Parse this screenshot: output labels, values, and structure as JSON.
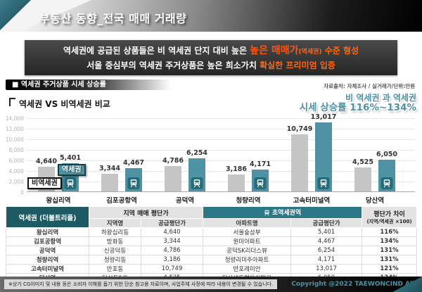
{
  "header": {
    "title": "부동산 동향_전국 매매 거래량"
  },
  "banner": {
    "line1_plain": "역세권에 공급된 상품들은 비 역세권 단지 대비 높은",
    "line1_em": "높은 매매가",
    "line1_em_paren": "(역세권)",
    "line1_em2": "수준 형성",
    "line2_plain": "서울 중심부의 역세권 주거상품은 높은 희소가치",
    "line2_em": "확실한 프리미엄 입증"
  },
  "section": {
    "title": "■ 역세권 주거상품 시세 상승률",
    "source": "자료출처: 자체조사 / 실거래가/단위:만원"
  },
  "compare": {
    "title": "역세권 VS 비역세권 비교",
    "highlight_line1": "비 역세권 과 역세권",
    "highlight_line2": "시세 상승률 116%~134%"
  },
  "chart_data": {
    "type": "bar",
    "categories": [
      "왕십리역",
      "김포공항역",
      "공덕역",
      "청량리역",
      "고속터미널역",
      "당산역"
    ],
    "series": [
      {
        "name": "비역세권",
        "color": "#c5c5c5",
        "values": [
          4640,
          3344,
          4786,
          3186,
          10749,
          4525
        ]
      },
      {
        "name": "역세권",
        "color": "#4e92a3",
        "values": [
          5401,
          4467,
          6254,
          4171,
          13017,
          6050
        ]
      }
    ],
    "title": "역세권 VS 비역세권 비교",
    "xlabel": "",
    "ylabel": "만원",
    "ylim": [
      0,
      14000
    ],
    "yticks": [
      "0",
      "2,000",
      "4,000",
      "6,000",
      "8,000",
      "10,000",
      "12,000",
      "14,000"
    ],
    "grid": true,
    "legend_position": "on-first-group"
  },
  "table": {
    "header": {
      "col1": "역세권 (더블트리플)",
      "group1": "지역 매매 평단가",
      "group2": "초역세권역",
      "sub": [
        "지역명",
        "공급평단가",
        "아파트명",
        "공급평단가"
      ],
      "col6_line1": "평단가 차이",
      "col6_line2": "(지역/역세권 ×100)"
    },
    "rows": [
      {
        "station": "왕십리역",
        "area": "하왕십리동",
        "area_price": "4,640",
        "apt": "서울숲삼부",
        "apt_price": "5,401",
        "diff": "116%"
      },
      {
        "station": "김포공항역",
        "area": "방화동",
        "area_price": "3,344",
        "apt": "원미아파트",
        "apt_price": "4,467",
        "diff": "134%"
      },
      {
        "station": "공덕역",
        "area": "신공덕동",
        "area_price": "4,786",
        "apt": "공덕SK리더스뷰",
        "apt_price": "6,254",
        "diff": "131%"
      },
      {
        "station": "청량리역",
        "area": "청량리동",
        "area_price": "3,186",
        "apt": "청량리미주아파트",
        "apt_price": "4,171",
        "diff": "131%"
      },
      {
        "station": "고속터미널역",
        "area": "반포동",
        "area_price": "10,749",
        "apt": "반포레미안",
        "apt_price": "13,017",
        "diff": "121%"
      },
      {
        "station": "당산역",
        "area": "당산동5가",
        "area_price": "4,525",
        "apt": "당산센트럴아이파크",
        "apt_price": "6,050",
        "diff": "134%"
      }
    ]
  },
  "footer": {
    "disclaimer": "※상기 CG이미지 및 내용 등은 소비자 이해를 돕기 위한 단순 참고용 자료이며, 사업주체 사정에 따라 내용이 변경될 수 있습니다.",
    "copyright": "Copyright @2022 TAEWONCIND All rights reserved."
  },
  "colors": {
    "teal_main": "#4e92a3",
    "teal_dark_header": "#1d5a63",
    "teal_group_header": "#2d7886",
    "icon_box": "#256b7a",
    "orange_em": "#ff6812",
    "gray_bar": "#c5c5c5",
    "percent_text": "#187180"
  }
}
